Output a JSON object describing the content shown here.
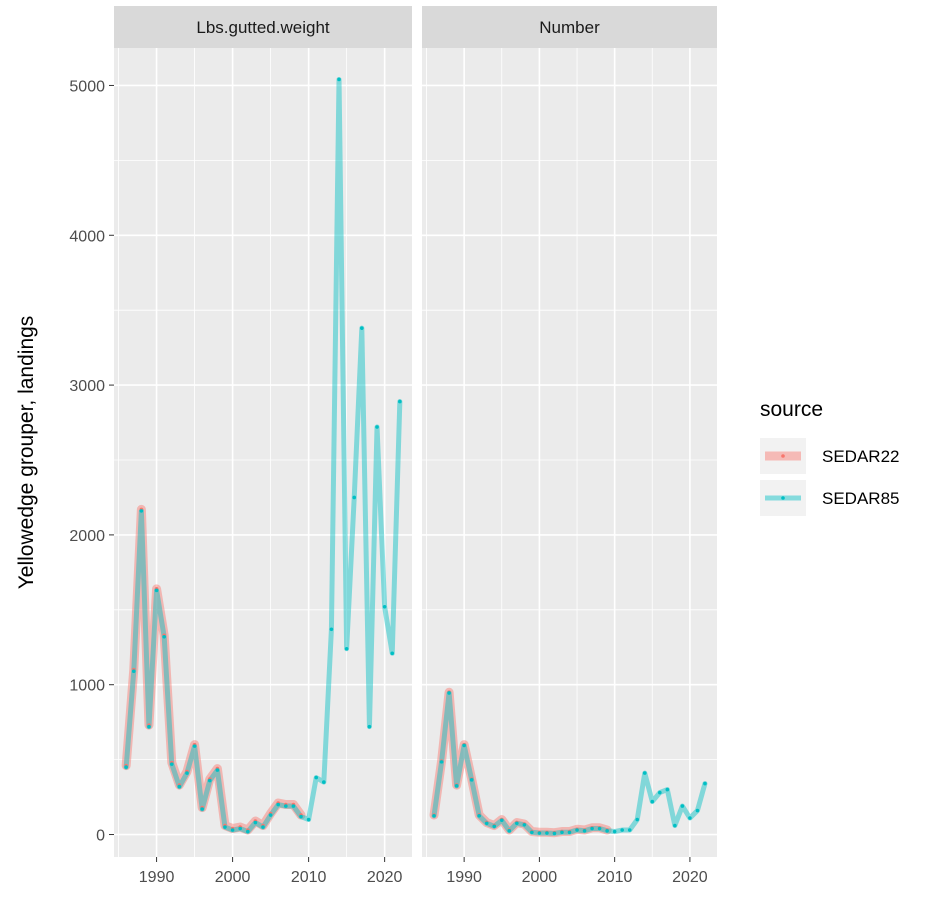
{
  "chart_data": {
    "type": "line",
    "ylabel": "Yellowedge grouper, landings",
    "ylim": [
      -150,
      5250
    ],
    "xlim": [
      1984.4,
      2023.6
    ],
    "y_ticks": [
      0,
      1000,
      2000,
      3000,
      4000,
      5000
    ],
    "x_ticks": [
      1990,
      2000,
      2010,
      2020
    ],
    "grid": true,
    "legend": {
      "title": "source",
      "position": "right",
      "entries": [
        "SEDAR22",
        "SEDAR85"
      ]
    },
    "colors": {
      "SEDAR22": "#F8766D",
      "SEDAR85": "#00BFC4",
      "panel_bg": "#EBEBEB",
      "strip_bg": "#D9D9D9",
      "grid": "#FFFFFF"
    },
    "panels": [
      {
        "strip": "Lbs.gutted.weight",
        "series": [
          {
            "name": "SEDAR22",
            "x": [
              1986,
              1987,
              1988,
              1989,
              1990,
              1991,
              1992,
              1993,
              1994,
              1995,
              1996,
              1997,
              1998,
              1999,
              2000,
              2001,
              2002,
              2003,
              2004,
              2005,
              2006,
              2007,
              2008,
              2009
            ],
            "y": [
              460,
              1100,
              2170,
              730,
              1640,
              1330,
              480,
              330,
              420,
              600,
              180,
              370,
              440,
              60,
              40,
              50,
              30,
              90,
              60,
              140,
              210,
              200,
              200,
              130
            ]
          },
          {
            "name": "SEDAR85",
            "x": [
              1986,
              1987,
              1988,
              1989,
              1990,
              1991,
              1992,
              1993,
              1994,
              1995,
              1996,
              1997,
              1998,
              1999,
              2000,
              2001,
              2002,
              2003,
              2004,
              2005,
              2006,
              2007,
              2008,
              2009,
              2010,
              2011,
              2012,
              2013,
              2014,
              2015,
              2016,
              2017,
              2018,
              2019,
              2020,
              2021,
              2022
            ],
            "y": [
              450,
              1090,
              2160,
              720,
              1630,
              1320,
              470,
              320,
              410,
              590,
              170,
              360,
              430,
              50,
              30,
              40,
              20,
              80,
              50,
              130,
              200,
              190,
              190,
              120,
              100,
              380,
              350,
              1370,
              5040,
              1240,
              2250,
              3380,
              720,
              2720,
              1520,
              1210,
              2890
            ]
          }
        ]
      },
      {
        "strip": "Number",
        "series": [
          {
            "name": "SEDAR22",
            "x": [
              1986,
              1987,
              1988,
              1989,
              1990,
              1991,
              1992,
              1993,
              1994,
              1995,
              1996,
              1997,
              1998,
              1999,
              2000,
              2001,
              2002,
              2003,
              2004,
              2005,
              2006,
              2007,
              2008,
              2009
            ],
            "y": [
              130,
              490,
              950,
              330,
              600,
              370,
              130,
              80,
              60,
              100,
              30,
              80,
              70,
              20,
              15,
              15,
              12,
              20,
              20,
              35,
              30,
              45,
              45,
              30
            ]
          },
          {
            "name": "SEDAR85",
            "x": [
              1986,
              1987,
              1988,
              1989,
              1990,
              1991,
              1992,
              1993,
              1994,
              1995,
              1996,
              1997,
              1998,
              1999,
              2000,
              2001,
              2002,
              2003,
              2004,
              2005,
              2006,
              2007,
              2008,
              2009,
              2010,
              2011,
              2012,
              2013,
              2014,
              2015,
              2016,
              2017,
              2018,
              2019,
              2020,
              2021,
              2022
            ],
            "y": [
              125,
              485,
              945,
              325,
              595,
              365,
              125,
              75,
              55,
              95,
              25,
              75,
              65,
              15,
              10,
              10,
              8,
              15,
              15,
              30,
              25,
              40,
              40,
              25,
              20,
              30,
              30,
              100,
              410,
              220,
              280,
              300,
              60,
              190,
              110,
              160,
              340
            ]
          }
        ]
      }
    ]
  }
}
